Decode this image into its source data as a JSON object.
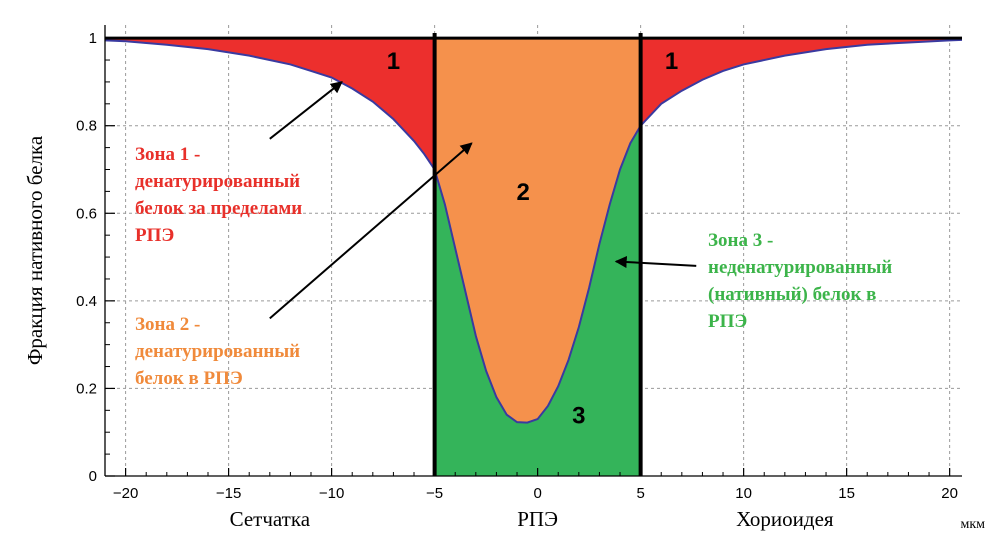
{
  "chart_data": {
    "type": "area",
    "ylabel": "Фракция нативного белка",
    "xlabel": "",
    "unit": "мкм",
    "xlim": [
      -21,
      20.6
    ],
    "ylim": [
      0,
      1.03
    ],
    "x_ticks": [
      -20,
      -15,
      -10,
      -5,
      0,
      5,
      10,
      15,
      20
    ],
    "x_tick_labels": [
      "−20",
      "−15",
      "−10",
      "−5",
      "0",
      "5",
      "10",
      "15",
      "20"
    ],
    "y_ticks": [
      0,
      0.2,
      0.4,
      0.6,
      0.8,
      1
    ],
    "y_tick_labels": [
      "0",
      "0.2",
      "0.4",
      "0.6",
      "0.8",
      "1"
    ],
    "grid": true,
    "boundaries": [
      -5,
      5
    ],
    "regions": [
      {
        "label": "Сетчатка",
        "center": -13
      },
      {
        "label": "РПЭ",
        "center": 0
      },
      {
        "label": "Хориоидея",
        "center": 12
      }
    ],
    "series": [
      {
        "x": [
          -21,
          -20,
          -18,
          -16,
          -14,
          -12,
          -11,
          -10,
          -9,
          -8,
          -7,
          -6,
          -5.5,
          -5,
          -4.5,
          -4,
          -3.5,
          -3,
          -2.5,
          -2,
          -1.5,
          -1,
          -0.5,
          0,
          0.5,
          1,
          1.5,
          2,
          2.5,
          3,
          3.5,
          4,
          4.5,
          5,
          6,
          7,
          8,
          9,
          10,
          12,
          14,
          16,
          18,
          20,
          20.6
        ],
        "y": [
          0.995,
          0.993,
          0.985,
          0.975,
          0.96,
          0.94,
          0.925,
          0.91,
          0.885,
          0.855,
          0.815,
          0.765,
          0.735,
          0.7,
          0.62,
          0.52,
          0.42,
          0.32,
          0.24,
          0.18,
          0.14,
          0.123,
          0.122,
          0.13,
          0.16,
          0.205,
          0.265,
          0.34,
          0.43,
          0.53,
          0.62,
          0.7,
          0.76,
          0.8,
          0.85,
          0.88,
          0.905,
          0.925,
          0.94,
          0.96,
          0.975,
          0.985,
          0.99,
          0.995,
          0.996
        ]
      }
    ],
    "zones": [
      {
        "number": "1",
        "x": -7,
        "y": 0.93
      },
      {
        "number": "1",
        "x": 6.5,
        "y": 0.93
      },
      {
        "number": "2",
        "x": -0.7,
        "y": 0.63
      },
      {
        "number": "3",
        "x": 2,
        "y": 0.12
      }
    ],
    "annotations": [
      {
        "lines": [
          "Зона 1 -",
          "денатурированный",
          "белок за пределами",
          "РПЭ"
        ],
        "color": "#e8302a",
        "arrow_to": [
          -9.5,
          0.9
        ],
        "arrow_from": [
          -13,
          0.77
        ]
      },
      {
        "lines": [
          "Зона 2 -",
          "денатурированный",
          "белок в РПЭ"
        ],
        "color": "#f08a3b",
        "arrow_to": [
          -3.2,
          0.76
        ],
        "arrow_from": [
          -13,
          0.36
        ]
      },
      {
        "lines": [
          "Зона 3 -",
          "неденатурированный",
          "(нативный) белок в",
          "РПЭ"
        ],
        "color": "#3cb44a",
        "arrow_to": [
          3.8,
          0.49
        ],
        "arrow_from": [
          7.7,
          0.48
        ]
      }
    ],
    "colors": {
      "zone1": "#ec2f2d",
      "zone2": "#f5914c",
      "zone3": "#34b45a",
      "curve": "#3a3aa0",
      "grid": "#9a9a9a",
      "boundary": "#000000"
    }
  }
}
